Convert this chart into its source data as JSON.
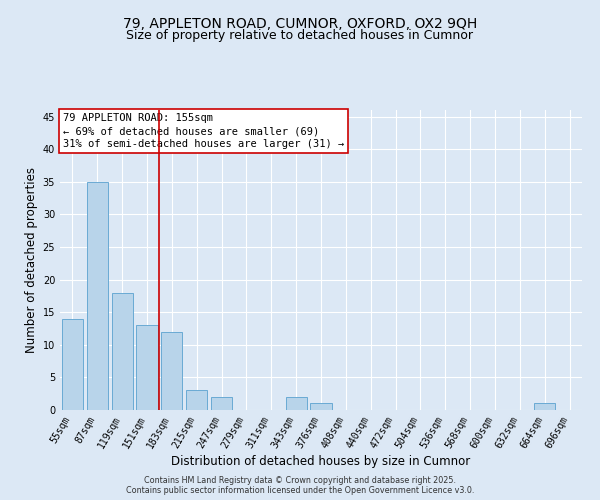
{
  "title1": "79, APPLETON ROAD, CUMNOR, OXFORD, OX2 9QH",
  "title2": "Size of property relative to detached houses in Cumnor",
  "xlabel": "Distribution of detached houses by size in Cumnor",
  "ylabel": "Number of detached properties",
  "bin_labels": [
    "55sqm",
    "87sqm",
    "119sqm",
    "151sqm",
    "183sqm",
    "215sqm",
    "247sqm",
    "279sqm",
    "311sqm",
    "343sqm",
    "376sqm",
    "408sqm",
    "440sqm",
    "472sqm",
    "504sqm",
    "536sqm",
    "568sqm",
    "600sqm",
    "632sqm",
    "664sqm",
    "696sqm"
  ],
  "bar_values": [
    14,
    35,
    18,
    13,
    12,
    3,
    2,
    0,
    0,
    2,
    1,
    0,
    0,
    0,
    0,
    0,
    0,
    0,
    0,
    1,
    0
  ],
  "bar_color": "#b8d4ea",
  "bar_edge_color": "#6aaad4",
  "annotation_box_text": "79 APPLETON ROAD: 155sqm\n← 69% of detached houses are smaller (69)\n31% of semi-detached houses are larger (31) →",
  "annotation_box_color": "#ffffff",
  "annotation_box_edge_color": "#cc0000",
  "vline_color": "#cc0000",
  "vline_x": 3.5,
  "ylim": [
    0,
    46
  ],
  "yticks": [
    0,
    5,
    10,
    15,
    20,
    25,
    30,
    35,
    40,
    45
  ],
  "bg_color": "#dce8f5",
  "grid_color": "#ffffff",
  "footer1": "Contains HM Land Registry data © Crown copyright and database right 2025.",
  "footer2": "Contains public sector information licensed under the Open Government Licence v3.0.",
  "title_fontsize": 10,
  "subtitle_fontsize": 9,
  "annotation_fontsize": 7.5,
  "axis_label_fontsize": 8.5,
  "tick_fontsize": 7
}
